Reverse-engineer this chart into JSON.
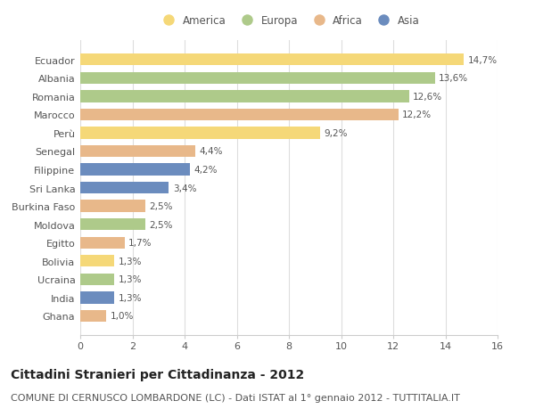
{
  "title": "Cittadini Stranieri per Cittadinanza - 2012",
  "subtitle": "COMUNE DI CERNUSCO LOMBARDONE (LC) - Dati ISTAT al 1° gennaio 2012 - TUTTITALIA.IT",
  "categories": [
    "Ecuador",
    "Albania",
    "Romania",
    "Marocco",
    "Perù",
    "Senegal",
    "Filippine",
    "Sri Lanka",
    "Burkina Faso",
    "Moldova",
    "Egitto",
    "Bolivia",
    "Ucraina",
    "India",
    "Ghana"
  ],
  "values": [
    14.7,
    13.6,
    12.6,
    12.2,
    9.2,
    4.4,
    4.2,
    3.4,
    2.5,
    2.5,
    1.7,
    1.3,
    1.3,
    1.3,
    1.0
  ],
  "labels": [
    "14,7%",
    "13,6%",
    "12,6%",
    "12,2%",
    "9,2%",
    "4,4%",
    "4,2%",
    "3,4%",
    "2,5%",
    "2,5%",
    "1,7%",
    "1,3%",
    "1,3%",
    "1,3%",
    "1,0%"
  ],
  "continents": [
    "America",
    "Europa",
    "Europa",
    "Africa",
    "America",
    "Africa",
    "Asia",
    "Asia",
    "Africa",
    "Europa",
    "Africa",
    "America",
    "Europa",
    "Asia",
    "Africa"
  ],
  "colors": {
    "America": "#F5D878",
    "Europa": "#AECA8A",
    "Africa": "#E8B88A",
    "Asia": "#6B8CBE"
  },
  "legend_order": [
    "America",
    "Europa",
    "Africa",
    "Asia"
  ],
  "xlim": [
    0,
    16
  ],
  "xticks": [
    0,
    2,
    4,
    6,
    8,
    10,
    12,
    14,
    16
  ],
  "background_color": "#ffffff",
  "bar_height": 0.65,
  "title_fontsize": 10,
  "subtitle_fontsize": 8,
  "label_fontsize": 7.5,
  "tick_fontsize": 8,
  "legend_fontsize": 8.5
}
